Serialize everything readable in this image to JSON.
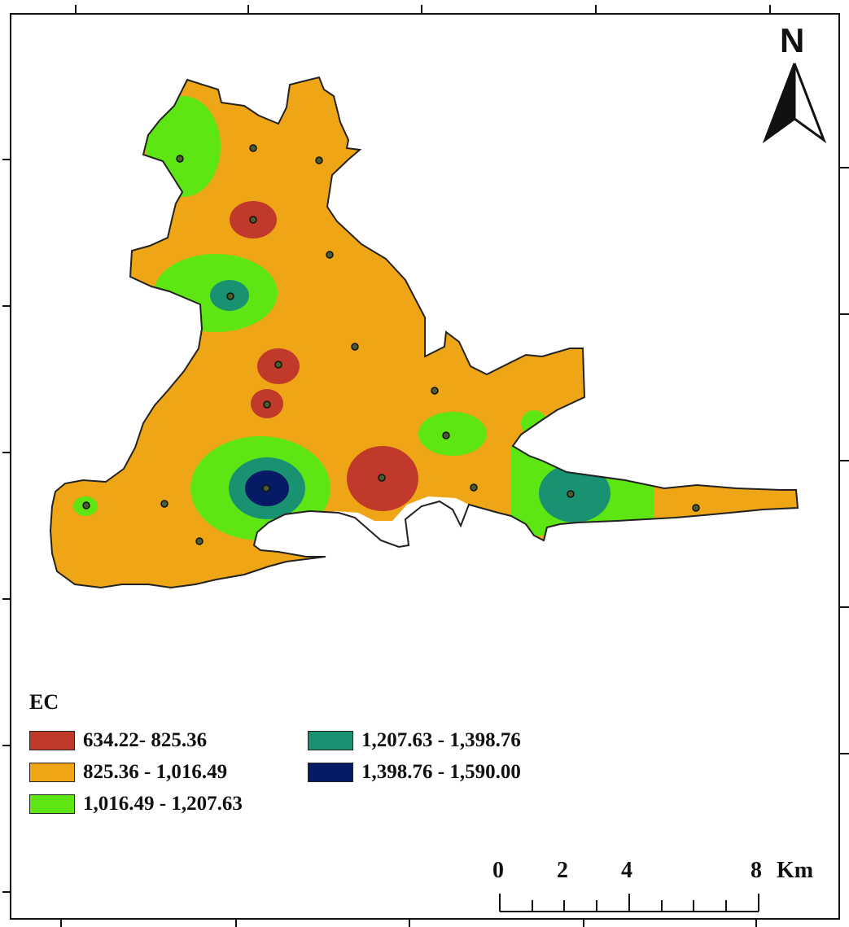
{
  "legend": {
    "title": "EC",
    "classes": [
      {
        "label": "634.22- 825.36",
        "color": "#c0392b"
      },
      {
        "label": "825.36 - 1,016.49",
        "color": "#eea616"
      },
      {
        "label": "1,016.49 - 1,207.63",
        "color": "#5ee614"
      },
      {
        "label": "1,207.63 - 1,398.76",
        "color": "#199272"
      },
      {
        "label": "1,398.76 - 1,590.00",
        "color": "#071a66"
      }
    ]
  },
  "north_arrow": {
    "label": "N"
  },
  "scale_bar": {
    "ticks": [
      "0",
      "2",
      "4",
      "8"
    ],
    "unit": "Km"
  }
}
